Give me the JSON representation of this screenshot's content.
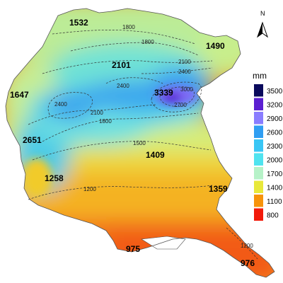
{
  "map": {
    "stations": [
      {
        "id": "s1532",
        "label": "1532"
      },
      {
        "id": "s1490",
        "label": "1490"
      },
      {
        "id": "s2101",
        "label": "2101"
      },
      {
        "id": "s1647",
        "label": "1647"
      },
      {
        "id": "s3339",
        "label": "3339"
      },
      {
        "id": "s2651",
        "label": "2651"
      },
      {
        "id": "s1409",
        "label": "1409"
      },
      {
        "id": "s1258",
        "label": "1258"
      },
      {
        "id": "s1359",
        "label": "1359"
      },
      {
        "id": "s975",
        "label": "975"
      },
      {
        "id": "s976",
        "label": "976"
      }
    ],
    "isohyets": {
      "l1800a": "1800",
      "l1800b": "1800",
      "l2101": "2101",
      "l2100a": "2100",
      "l2400a": "2400",
      "l2400b": "2400",
      "l2400c": "2400",
      "l3000": "3000",
      "l2700": "2700",
      "l2100b": "2100",
      "l1800c": "1800",
      "l1500": "1500",
      "l1200a": "1200",
      "l1200b": "1200"
    }
  },
  "north_arrow": {
    "label": "N"
  },
  "legend": {
    "unit": "mm",
    "classes": [
      {
        "label": "3500",
        "color": "#0a0a5c"
      },
      {
        "label": "3200",
        "color": "#5b1fd1"
      },
      {
        "label": "2900",
        "color": "#8a7dff"
      },
      {
        "label": "2600",
        "color": "#2f9ef2"
      },
      {
        "label": "2300",
        "color": "#39c6f5"
      },
      {
        "label": "2000",
        "color": "#4fe3ef"
      },
      {
        "label": "1700",
        "color": "#b6f2c8"
      },
      {
        "label": "1400",
        "color": "#e8e83a"
      },
      {
        "label": "1100",
        "color": "#f7930a"
      },
      {
        "label": "800",
        "color": "#f21a0a"
      }
    ]
  }
}
